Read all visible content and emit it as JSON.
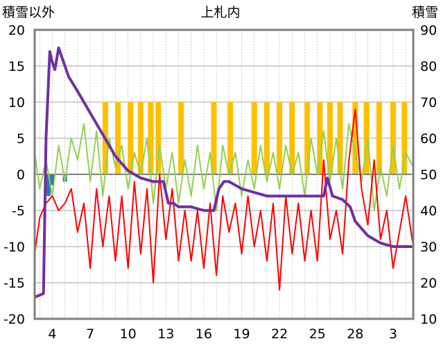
{
  "chart_data": {
    "type": "line",
    "title": "上札内",
    "left_axis_title": "積雪以外",
    "right_axis_title": "積雪",
    "ylim_left": [
      -20,
      20
    ],
    "ylim_right": [
      10,
      90
    ],
    "y_ticks_left": [
      "20",
      "15",
      "10",
      "5",
      "0",
      "-5",
      "-10",
      "-15",
      "-20"
    ],
    "y_ticks_right": [
      "90",
      "80",
      "70",
      "60",
      "50",
      "40",
      "30",
      "20",
      "10"
    ],
    "x_ticks": [
      "4",
      "7",
      "10",
      "13",
      "16",
      "19",
      "22",
      "25",
      "28",
      "3"
    ],
    "xlim": [
      2.6,
      32.6
    ],
    "x_tick_values": [
      4,
      7,
      10,
      13,
      16,
      19,
      22,
      25,
      28,
      31
    ],
    "grid": true,
    "colors": {
      "sunshine": "#FFC000",
      "precip": "#2E75B6",
      "temperature": "#FF0000",
      "other": "#92D050",
      "snow_depth": "#7030A0",
      "grid": "#A6A6A6",
      "frame": "#7F7F7F"
    },
    "series": [
      {
        "key": "snow_depth",
        "axis": "right",
        "x": [
          2.6,
          3.3,
          3.5,
          3.8,
          4.0,
          4.2,
          4.5,
          4.8,
          5.3,
          6.0,
          7.0,
          8.0,
          9.0,
          10.0,
          11.0,
          12.0,
          12.8,
          13.2,
          13.6,
          14.0,
          15.0,
          16.0,
          16.8,
          17.2,
          17.6,
          18.0,
          19.0,
          20.0,
          21.0,
          22.0,
          23.0,
          24.0,
          25.0,
          25.5,
          25.8,
          26.2,
          27.0,
          27.6,
          28.0,
          29.0,
          30.0,
          31.0,
          32.0,
          32.6
        ],
        "y": [
          16,
          17,
          60,
          84,
          81,
          79,
          85,
          82,
          77,
          73,
          67,
          61,
          55,
          51,
          49,
          48,
          48,
          42,
          42,
          41,
          41,
          40,
          40,
          46,
          48,
          48,
          46,
          45,
          44,
          44,
          44,
          44,
          44,
          44,
          49,
          44,
          43,
          41,
          37,
          33,
          31,
          30,
          30,
          30
        ]
      },
      {
        "key": "temperature",
        "axis": "left",
        "x": [
          2.6,
          3.0,
          3.5,
          4.0,
          4.5,
          5.0,
          5.5,
          6.0,
          6.5,
          7.0,
          7.5,
          8.0,
          8.5,
          9.0,
          9.5,
          10.0,
          10.5,
          11.0,
          11.5,
          12.0,
          12.5,
          13.0,
          13.5,
          14.0,
          14.5,
          15.0,
          15.5,
          16.0,
          16.5,
          17.0,
          17.5,
          18.0,
          18.5,
          19.0,
          19.5,
          20.0,
          20.5,
          21.0,
          21.5,
          22.0,
          22.5,
          23.0,
          23.5,
          24.0,
          24.5,
          25.0,
          25.5,
          26.0,
          26.5,
          27.0,
          27.5,
          28.0,
          28.5,
          29.0,
          29.5,
          30.0,
          30.5,
          31.0,
          31.5,
          32.0,
          32.6
        ],
        "y": [
          -11,
          -6,
          -4,
          -3,
          -5,
          -4,
          -2,
          -8,
          -4,
          -13,
          -2,
          -10,
          -3,
          -12,
          -3,
          -13,
          -1,
          -11,
          -2,
          -15,
          0,
          -9,
          -2,
          -12,
          -5,
          -12,
          -5,
          -13,
          -4,
          -14,
          -3,
          -8,
          -4,
          -11,
          -3,
          -10,
          -5,
          -12,
          -4,
          -16,
          -3,
          -11,
          -4,
          -12,
          -5,
          -12,
          2,
          -9,
          -5,
          -11,
          2,
          9,
          -2,
          -7,
          2,
          -9,
          -5,
          -13,
          -8,
          -3,
          -10
        ]
      },
      {
        "key": "other",
        "axis": "left",
        "x": [
          2.6,
          3.0,
          3.5,
          4.0,
          4.5,
          5.0,
          5.5,
          6.0,
          6.5,
          7.0,
          7.5,
          8.0,
          8.5,
          9.0,
          9.5,
          10.0,
          10.5,
          11.0,
          11.5,
          12.0,
          12.5,
          13.0,
          13.5,
          14.0,
          14.5,
          15.0,
          15.5,
          16.0,
          16.5,
          17.0,
          17.5,
          18.0,
          18.5,
          19.0,
          19.5,
          20.0,
          20.5,
          21.0,
          21.5,
          22.0,
          22.5,
          23.0,
          23.5,
          24.0,
          24.5,
          25.0,
          25.5,
          26.0,
          26.5,
          27.0,
          27.5,
          28.0,
          28.5,
          29.0,
          29.5,
          30.0,
          30.5,
          31.0,
          31.5,
          32.0,
          32.6
        ],
        "y": [
          3,
          -2,
          2,
          -3,
          4,
          -1,
          5,
          2,
          7,
          -1,
          6,
          -3,
          5,
          1,
          4,
          -2,
          3,
          0,
          5,
          -4,
          4,
          -2,
          3,
          -4,
          2,
          -3,
          4,
          -2,
          3,
          -5,
          4,
          0,
          3,
          -3,
          2,
          -2,
          4,
          -1,
          3,
          -2,
          4,
          0,
          3,
          -3,
          5,
          0,
          6,
          -1,
          5,
          -2,
          7,
          3,
          -1,
          5,
          -5,
          1,
          -3,
          4,
          -2,
          3,
          1
        ]
      }
    ],
    "sunshine_bars": {
      "key": "sunshine",
      "axis": "left",
      "x": [
        8.2,
        9.2,
        10.2,
        11.0,
        11.8,
        12.4,
        14.2,
        16.8,
        18.1,
        20.0,
        21.0,
        22.0,
        23.0,
        24.2,
        25.2,
        26.0,
        26.8,
        28.0,
        28.9,
        29.9,
        31.0,
        31.9
      ],
      "y": [
        10,
        10,
        10,
        10,
        10,
        10,
        10,
        10,
        10,
        10,
        10,
        10,
        10,
        10,
        10,
        10,
        10,
        10,
        10,
        10,
        10,
        10
      ]
    },
    "precip_bars": {
      "key": "precip",
      "axis": "left",
      "x": [
        3.7,
        4.0,
        5.0
      ],
      "y": [
        -3,
        -1.5,
        -1
      ]
    }
  }
}
